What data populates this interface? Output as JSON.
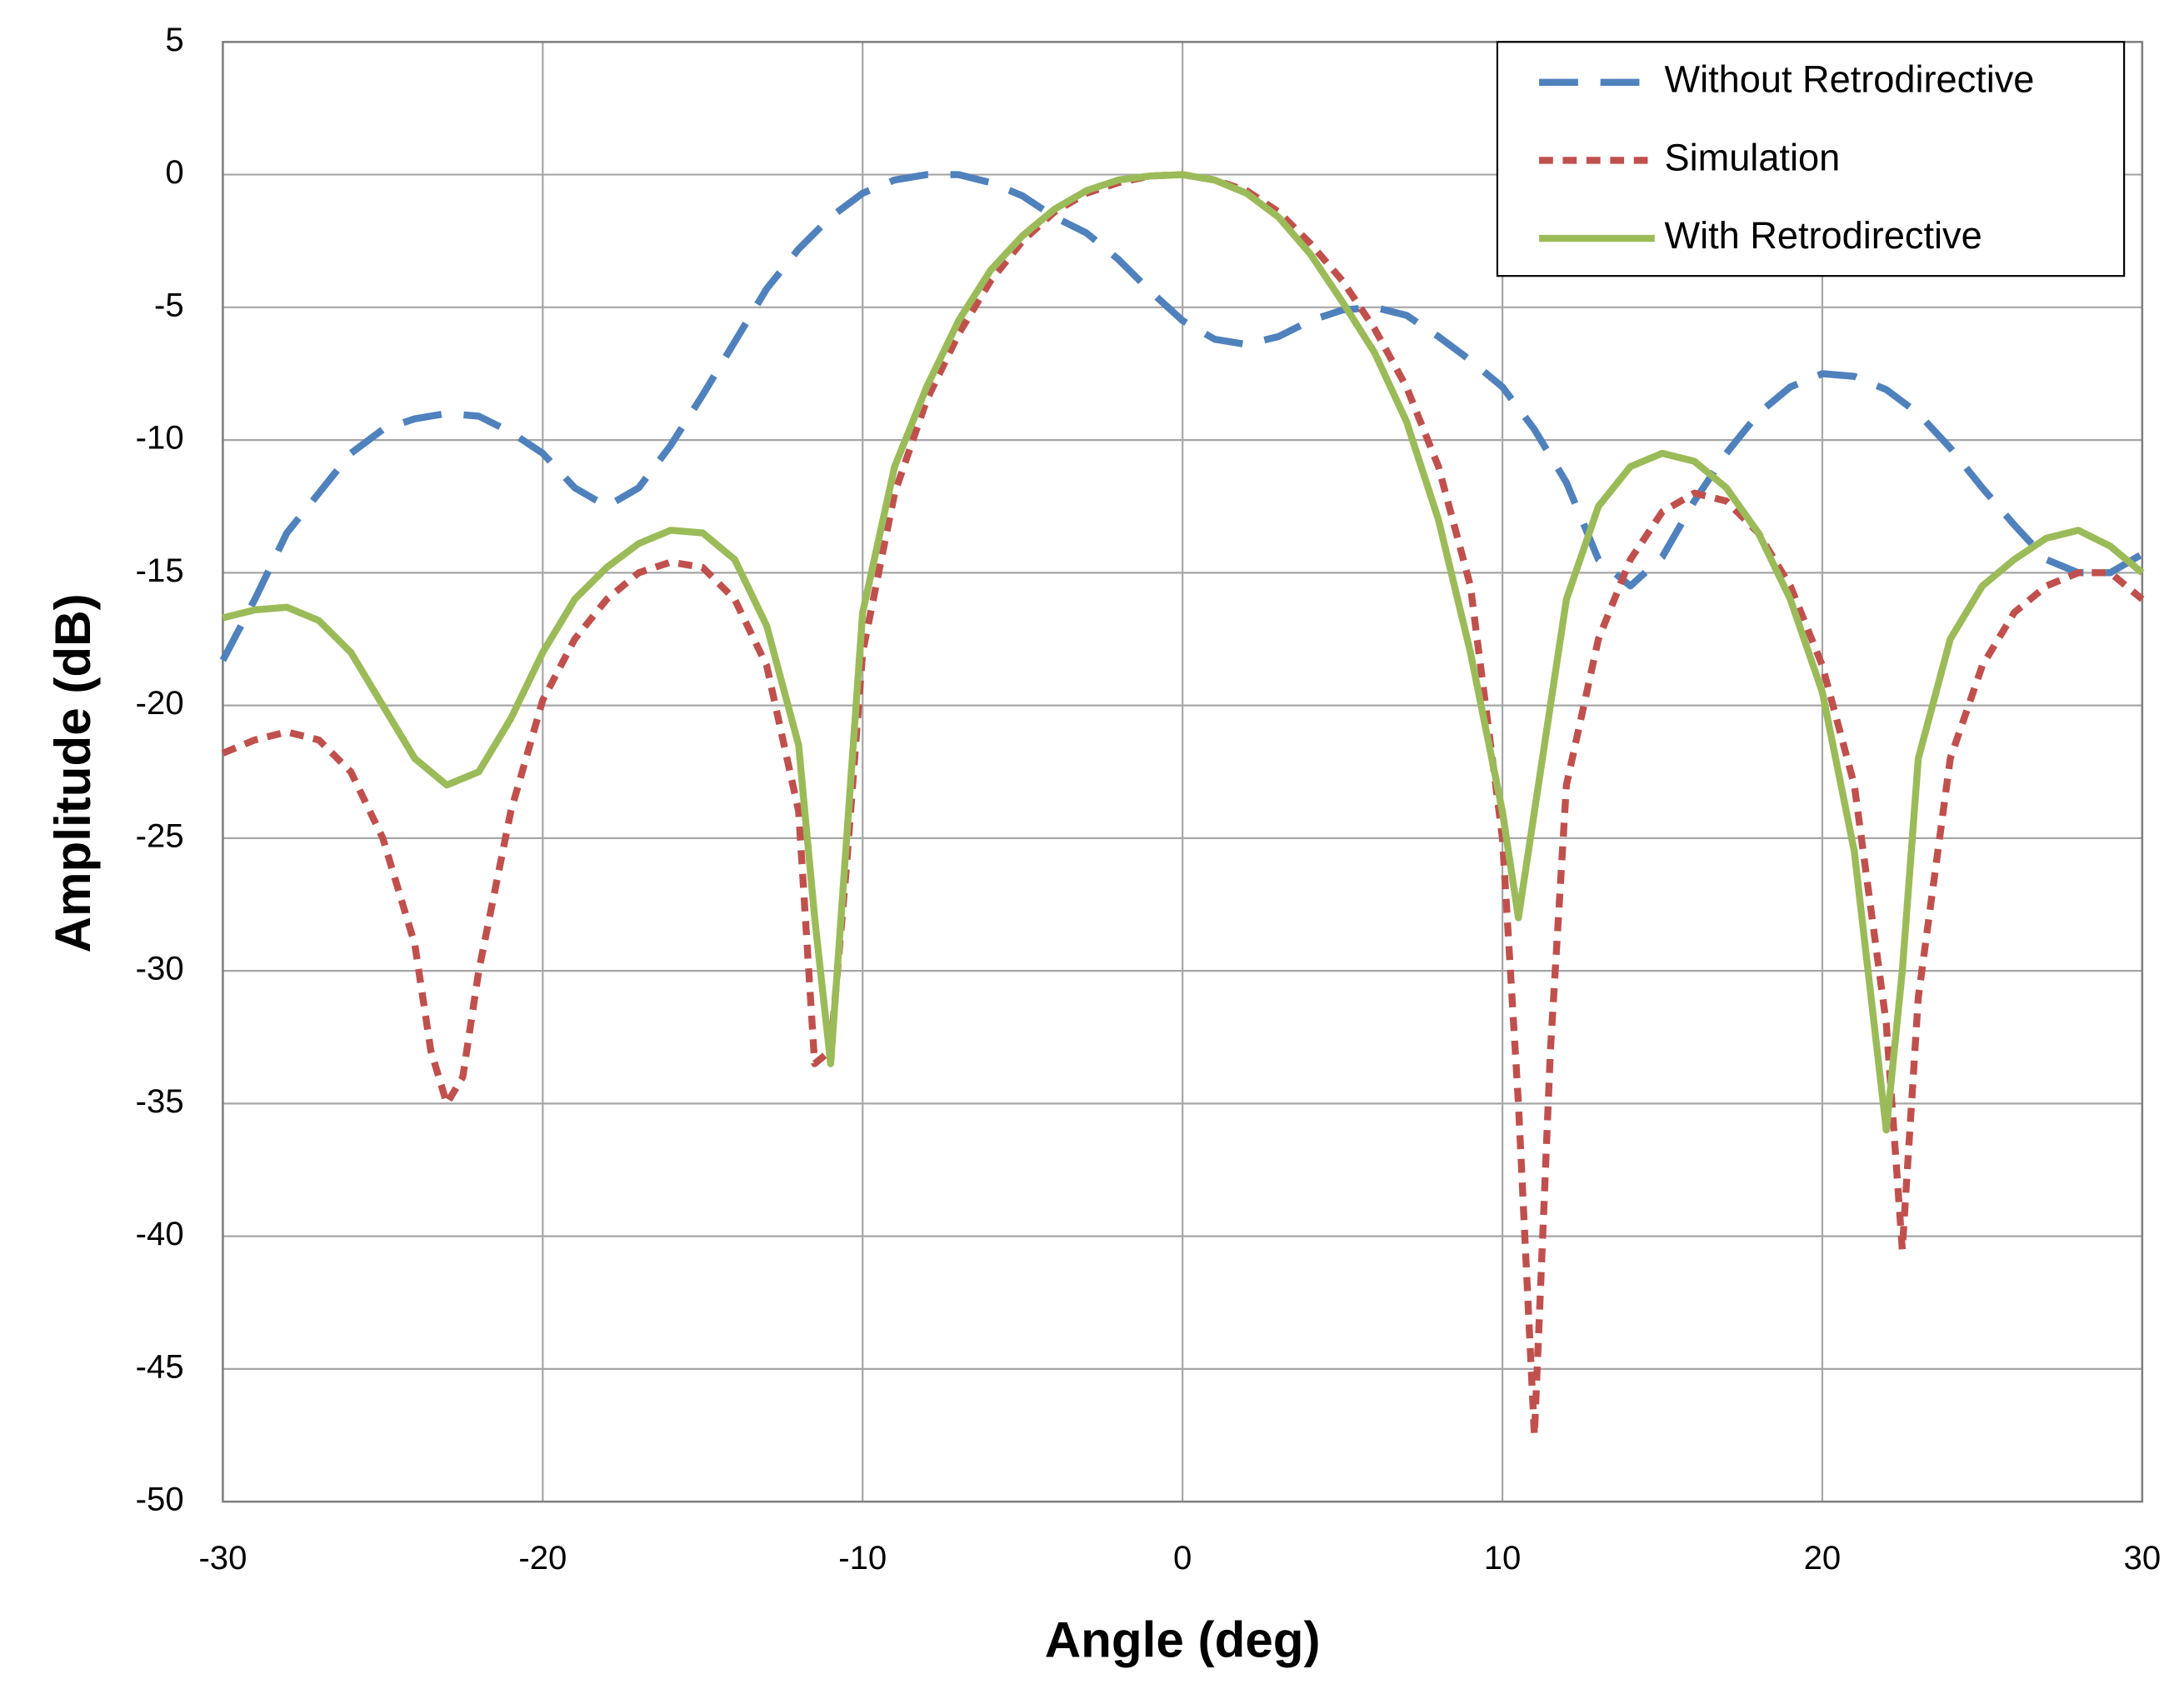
{
  "chart_data": {
    "type": "line",
    "x_label": "Angle (deg)",
    "y_label": "Amplitude (dB)",
    "xlim": [
      -30,
      30
    ],
    "xticks": [
      -30,
      -20,
      -10,
      0,
      10,
      20,
      30
    ],
    "ylim": [
      -50,
      5
    ],
    "yticks": [
      5,
      0,
      -5,
      -10,
      -15,
      -20,
      -25,
      -30,
      -35,
      -40,
      -45,
      -50
    ],
    "grid": true,
    "legend": "upper right",
    "series": [
      {
        "name": "Without Retrodirective",
        "color": "#4f81bd",
        "dash": "long",
        "x": [
          -30,
          -29,
          -28,
          -27,
          -26,
          -25,
          -24,
          -23,
          -22,
          -21,
          -20,
          -19,
          -18,
          -17,
          -16,
          -15,
          -14,
          -13,
          -12,
          -11,
          -10,
          -9,
          -8,
          -7,
          -6,
          -5,
          -4,
          -3,
          -2,
          -1,
          0,
          1,
          2,
          3,
          4,
          5,
          6,
          7,
          8,
          9,
          10,
          11,
          12,
          13,
          14,
          15,
          16,
          17,
          18,
          19,
          20,
          21,
          22,
          23,
          24,
          25,
          26,
          27,
          28,
          29,
          30
        ],
        "values": [
          -18.3,
          -16,
          -13.5,
          -12,
          -10.5,
          -9.6,
          -9.2,
          -9,
          -9.1,
          -9.7,
          -10.5,
          -11.8,
          -12.5,
          -11.8,
          -10.2,
          -8.3,
          -6.3,
          -4.3,
          -2.8,
          -1.6,
          -0.7,
          -0.2,
          0,
          0,
          -0.3,
          -0.8,
          -1.6,
          -2.2,
          -3.2,
          -4.4,
          -5.5,
          -6.2,
          -6.4,
          -6.1,
          -5.5,
          -5.1,
          -5,
          -5.3,
          -6.1,
          -7,
          -8,
          -9.6,
          -11.6,
          -14.5,
          -15.5,
          -14.4,
          -12.3,
          -10.5,
          -9,
          -8,
          -7.5,
          -7.6,
          -8.1,
          -9,
          -10.3,
          -11.8,
          -13.2,
          -14.5,
          -15,
          -15,
          -14.3
        ]
      },
      {
        "name": "Simulation",
        "color": "#c0504d",
        "dash": "short",
        "x": [
          -30,
          -29,
          -28,
          -27,
          -26,
          -25,
          -24,
          -23.5,
          -23,
          -22.5,
          -22,
          -21,
          -20,
          -19,
          -18,
          -17,
          -16,
          -15,
          -14,
          -13,
          -12,
          -11.5,
          -11,
          -10.5,
          -10,
          -9,
          -8,
          -7,
          -6,
          -5,
          -4,
          -3,
          -2,
          -1,
          0,
          1,
          2,
          3,
          4,
          5,
          6,
          7,
          8,
          9,
          10,
          10.5,
          11,
          11.5,
          12,
          13,
          14,
          15,
          16,
          17,
          18,
          19,
          20,
          21,
          22,
          22.5,
          23,
          24,
          25,
          26,
          27,
          28,
          29,
          30
        ],
        "values": [
          -21.8,
          -21.3,
          -21,
          -21.3,
          -22.5,
          -25,
          -29,
          -33,
          -35,
          -34,
          -30,
          -24,
          -19.8,
          -17.5,
          -16,
          -15,
          -14.6,
          -14.8,
          -16,
          -18.5,
          -24,
          -33.5,
          -33,
          -26,
          -18,
          -12,
          -8.5,
          -6,
          -4,
          -2.5,
          -1.4,
          -0.7,
          -0.3,
          -0.05,
          0,
          -0.2,
          -0.6,
          -1.4,
          -2.6,
          -4,
          -5.8,
          -8,
          -11,
          -15.5,
          -25,
          -35,
          -47.5,
          -33,
          -23,
          -17.5,
          -14.5,
          -12.7,
          -12,
          -12.3,
          -13.5,
          -15.5,
          -18.5,
          -23,
          -32,
          -40.5,
          -31,
          -22,
          -18.5,
          -16.5,
          -15.5,
          -15,
          -15,
          -16
        ]
      },
      {
        "name": "With Retrodirective",
        "color": "#9bbb59",
        "dash": "solid",
        "x": [
          -30,
          -29,
          -28,
          -27,
          -26,
          -25,
          -24,
          -23,
          -22,
          -21,
          -20,
          -19,
          -18,
          -17,
          -16,
          -15,
          -14,
          -13,
          -12,
          -11.5,
          -11,
          -10.5,
          -10,
          -9,
          -8,
          -7,
          -6,
          -5,
          -4,
          -3,
          -2,
          -1,
          0,
          1,
          2,
          3,
          4,
          5,
          6,
          7,
          8,
          9,
          10,
          10.5,
          11,
          12,
          13,
          14,
          15,
          16,
          17,
          18,
          19,
          20,
          21,
          22,
          22.5,
          23,
          24,
          25,
          26,
          27,
          28,
          29,
          30
        ],
        "values": [
          -16.7,
          -16.4,
          -16.3,
          -16.8,
          -18,
          -20,
          -22,
          -23,
          -22.5,
          -20.5,
          -18,
          -16,
          -14.8,
          -13.9,
          -13.4,
          -13.5,
          -14.5,
          -17,
          -21.5,
          -28,
          -33.5,
          -25,
          -16.5,
          -11,
          -8,
          -5.5,
          -3.6,
          -2.3,
          -1.3,
          -0.6,
          -0.2,
          -0.05,
          0,
          -0.2,
          -0.7,
          -1.6,
          -3,
          -4.8,
          -6.7,
          -9.3,
          -13,
          -18,
          -24,
          -28,
          -24,
          -16,
          -12.5,
          -11,
          -10.5,
          -10.8,
          -11.8,
          -13.5,
          -16,
          -19.5,
          -25.5,
          -36,
          -30,
          -22,
          -17.5,
          -15.5,
          -14.5,
          -13.7,
          -13.4,
          -14,
          -15
        ]
      }
    ]
  }
}
